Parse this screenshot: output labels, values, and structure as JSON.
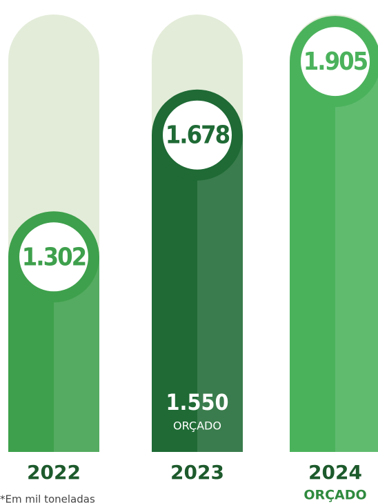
{
  "chart_data": {
    "type": "bar",
    "categories": [
      "2022",
      "2023",
      "2024"
    ],
    "values": [
      1302,
      1678,
      1905
    ],
    "value_labels": [
      "1.302",
      "1.678",
      "1.905"
    ],
    "colors": [
      "#3ea04c",
      "#1f6a35",
      "#4bb25c"
    ],
    "category_notes": [
      null,
      null,
      "ORÇADO"
    ],
    "annotation": {
      "category": "2023",
      "value": 1550,
      "label": "1.550",
      "text": "ORÇADO"
    },
    "ylim": [
      700,
      2050
    ],
    "footnote": "*Em mil toneladas"
  }
}
